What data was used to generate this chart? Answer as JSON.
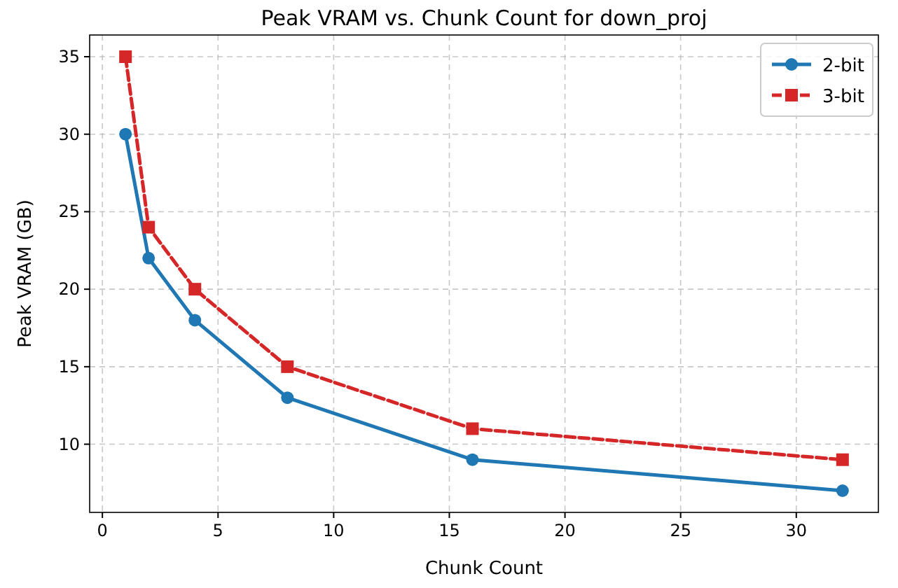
{
  "chart_data": {
    "type": "line",
    "title": "Peak VRAM vs. Chunk Count for down_proj",
    "xlabel": "Chunk Count",
    "ylabel": "Peak VRAM (GB)",
    "x": [
      1,
      2,
      4,
      8,
      16,
      32
    ],
    "series": [
      {
        "name": "2-bit",
        "color": "#1f77b4",
        "values": [
          30,
          22,
          18,
          13,
          9,
          7
        ],
        "marker": "circle",
        "line_style": "solid"
      },
      {
        "name": "3-bit",
        "color": "#d62728",
        "values": [
          35,
          24,
          20,
          15,
          11,
          9
        ],
        "marker": "square",
        "line_style": "dashed"
      }
    ],
    "xlim": [
      -0.55,
      33.55
    ],
    "ylim": [
      5.6,
      36.4
    ],
    "xticks": [
      0,
      5,
      10,
      15,
      20,
      25,
      30
    ],
    "yticks": [
      10,
      15,
      20,
      25,
      30,
      35
    ],
    "grid": true,
    "legend": "top right"
  }
}
